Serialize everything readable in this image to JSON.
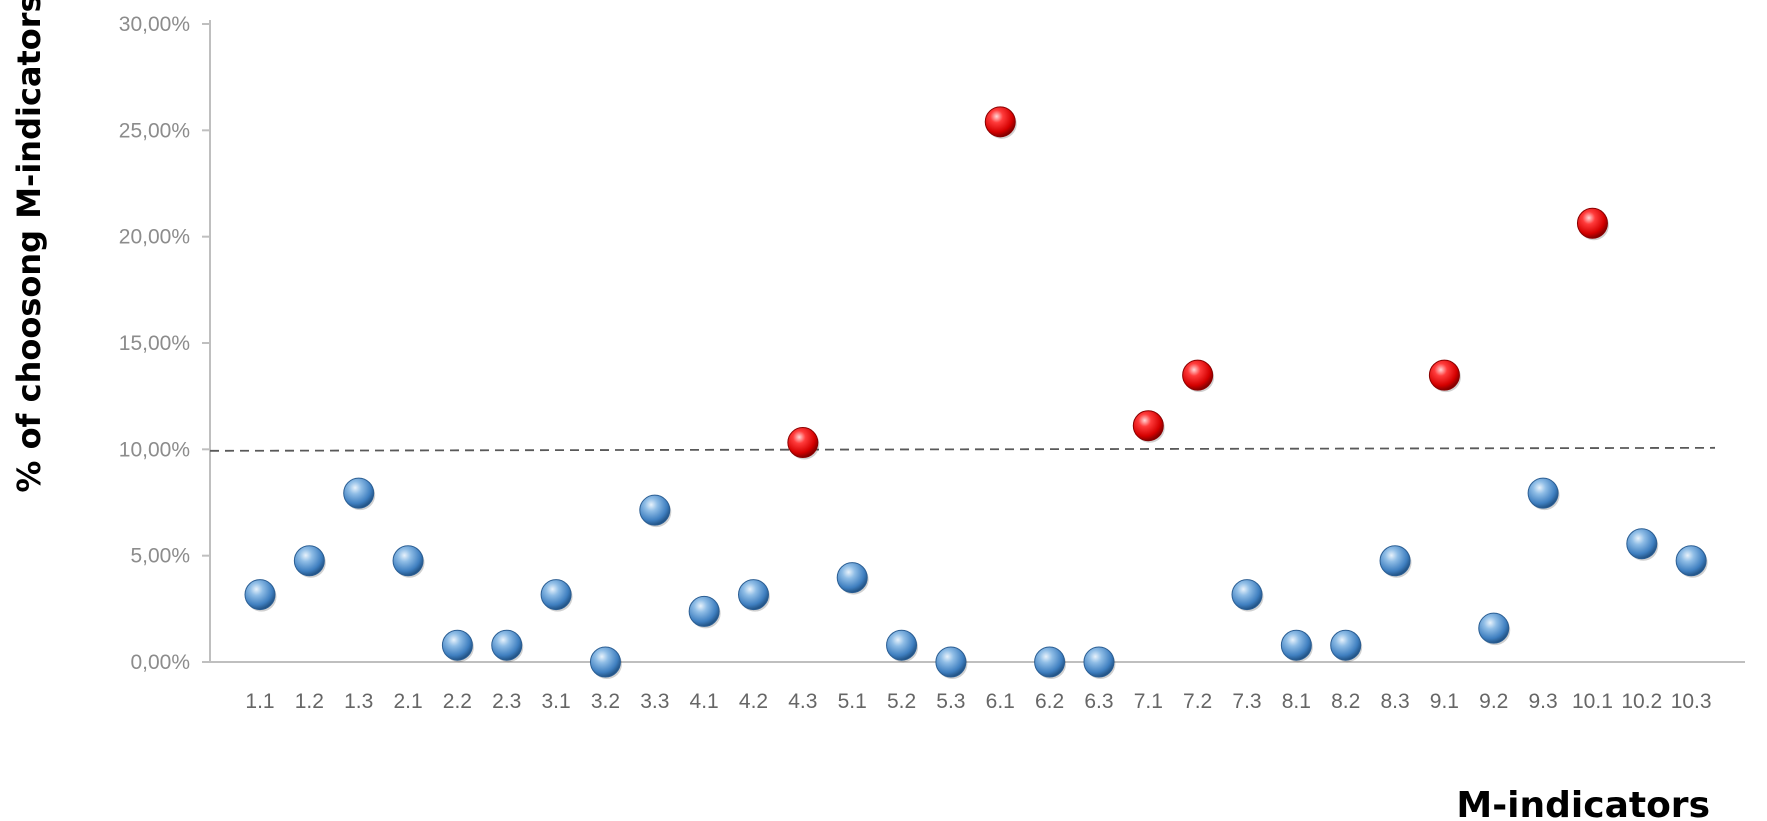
{
  "chart_data": {
    "type": "scatter",
    "xlabel": "M-indicators",
    "ylabel": "% of choosong M-indicators",
    "categories": [
      "1.1",
      "1.2",
      "1.3",
      "2.1",
      "2.2",
      "2.3",
      "3.1",
      "3.2",
      "3.3",
      "4.1",
      "4.2",
      "4.3",
      "5.1",
      "5.2",
      "5.3",
      "6.1",
      "6.2",
      "6.3",
      "7.1",
      "7.2",
      "7.3",
      "8.1",
      "8.2",
      "8.3",
      "9.1",
      "9.2",
      "9.3",
      "10.1",
      "10.2",
      "10.3"
    ],
    "values": [
      3.17,
      4.76,
      7.94,
      4.76,
      0.79,
      0.79,
      3.17,
      0.0,
      7.14,
      2.38,
      3.17,
      10.32,
      3.97,
      0.79,
      0.0,
      25.4,
      0.0,
      0.0,
      11.11,
      13.49,
      3.17,
      0.79,
      0.79,
      4.76,
      13.49,
      1.59,
      7.94,
      20.63,
      5.56,
      4.76
    ],
    "ylim": [
      0,
      30
    ],
    "yticks": [
      "0,00%",
      "5,00%",
      "10,00%",
      "15,00%",
      "20,00%",
      "25,00%",
      "30,00%"
    ],
    "threshold": 10,
    "threshold_style": "dashed",
    "grid": false,
    "legend": "none",
    "colors": {
      "below_threshold": "#5b9bd5",
      "above_threshold": "#e31a1c",
      "axis": "#bfbfbf",
      "threshold_line": "#595959"
    }
  }
}
